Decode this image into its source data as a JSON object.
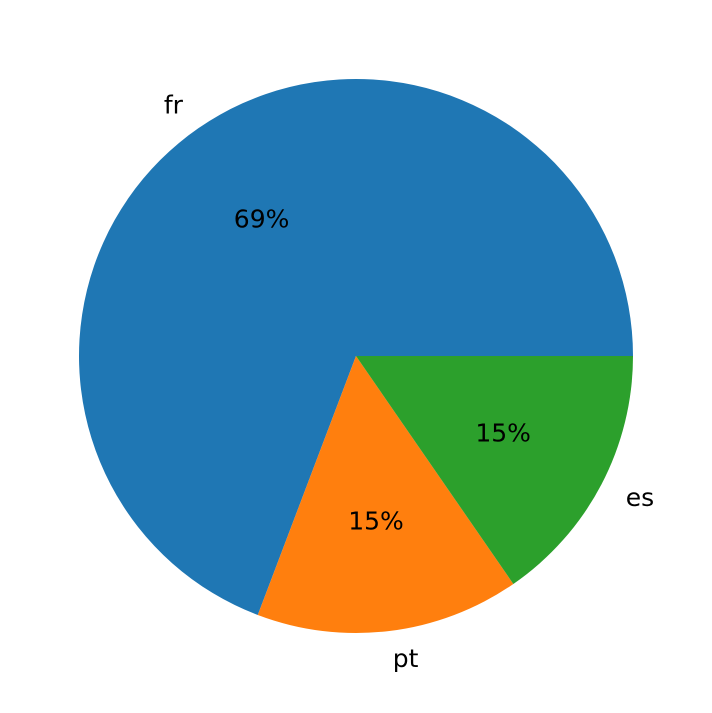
{
  "chart_data": {
    "type": "pie",
    "categories": [
      "fr",
      "pt",
      "es"
    ],
    "values": [
      9,
      2,
      2
    ],
    "percent_labels": [
      "69%",
      "15%",
      "15%"
    ],
    "colors": [
      "#1f77b4",
      "#ff7f0e",
      "#2ca02c"
    ],
    "start_angle_deg": 0,
    "direction": "counterclockwise",
    "title": "",
    "legend": "none"
  }
}
